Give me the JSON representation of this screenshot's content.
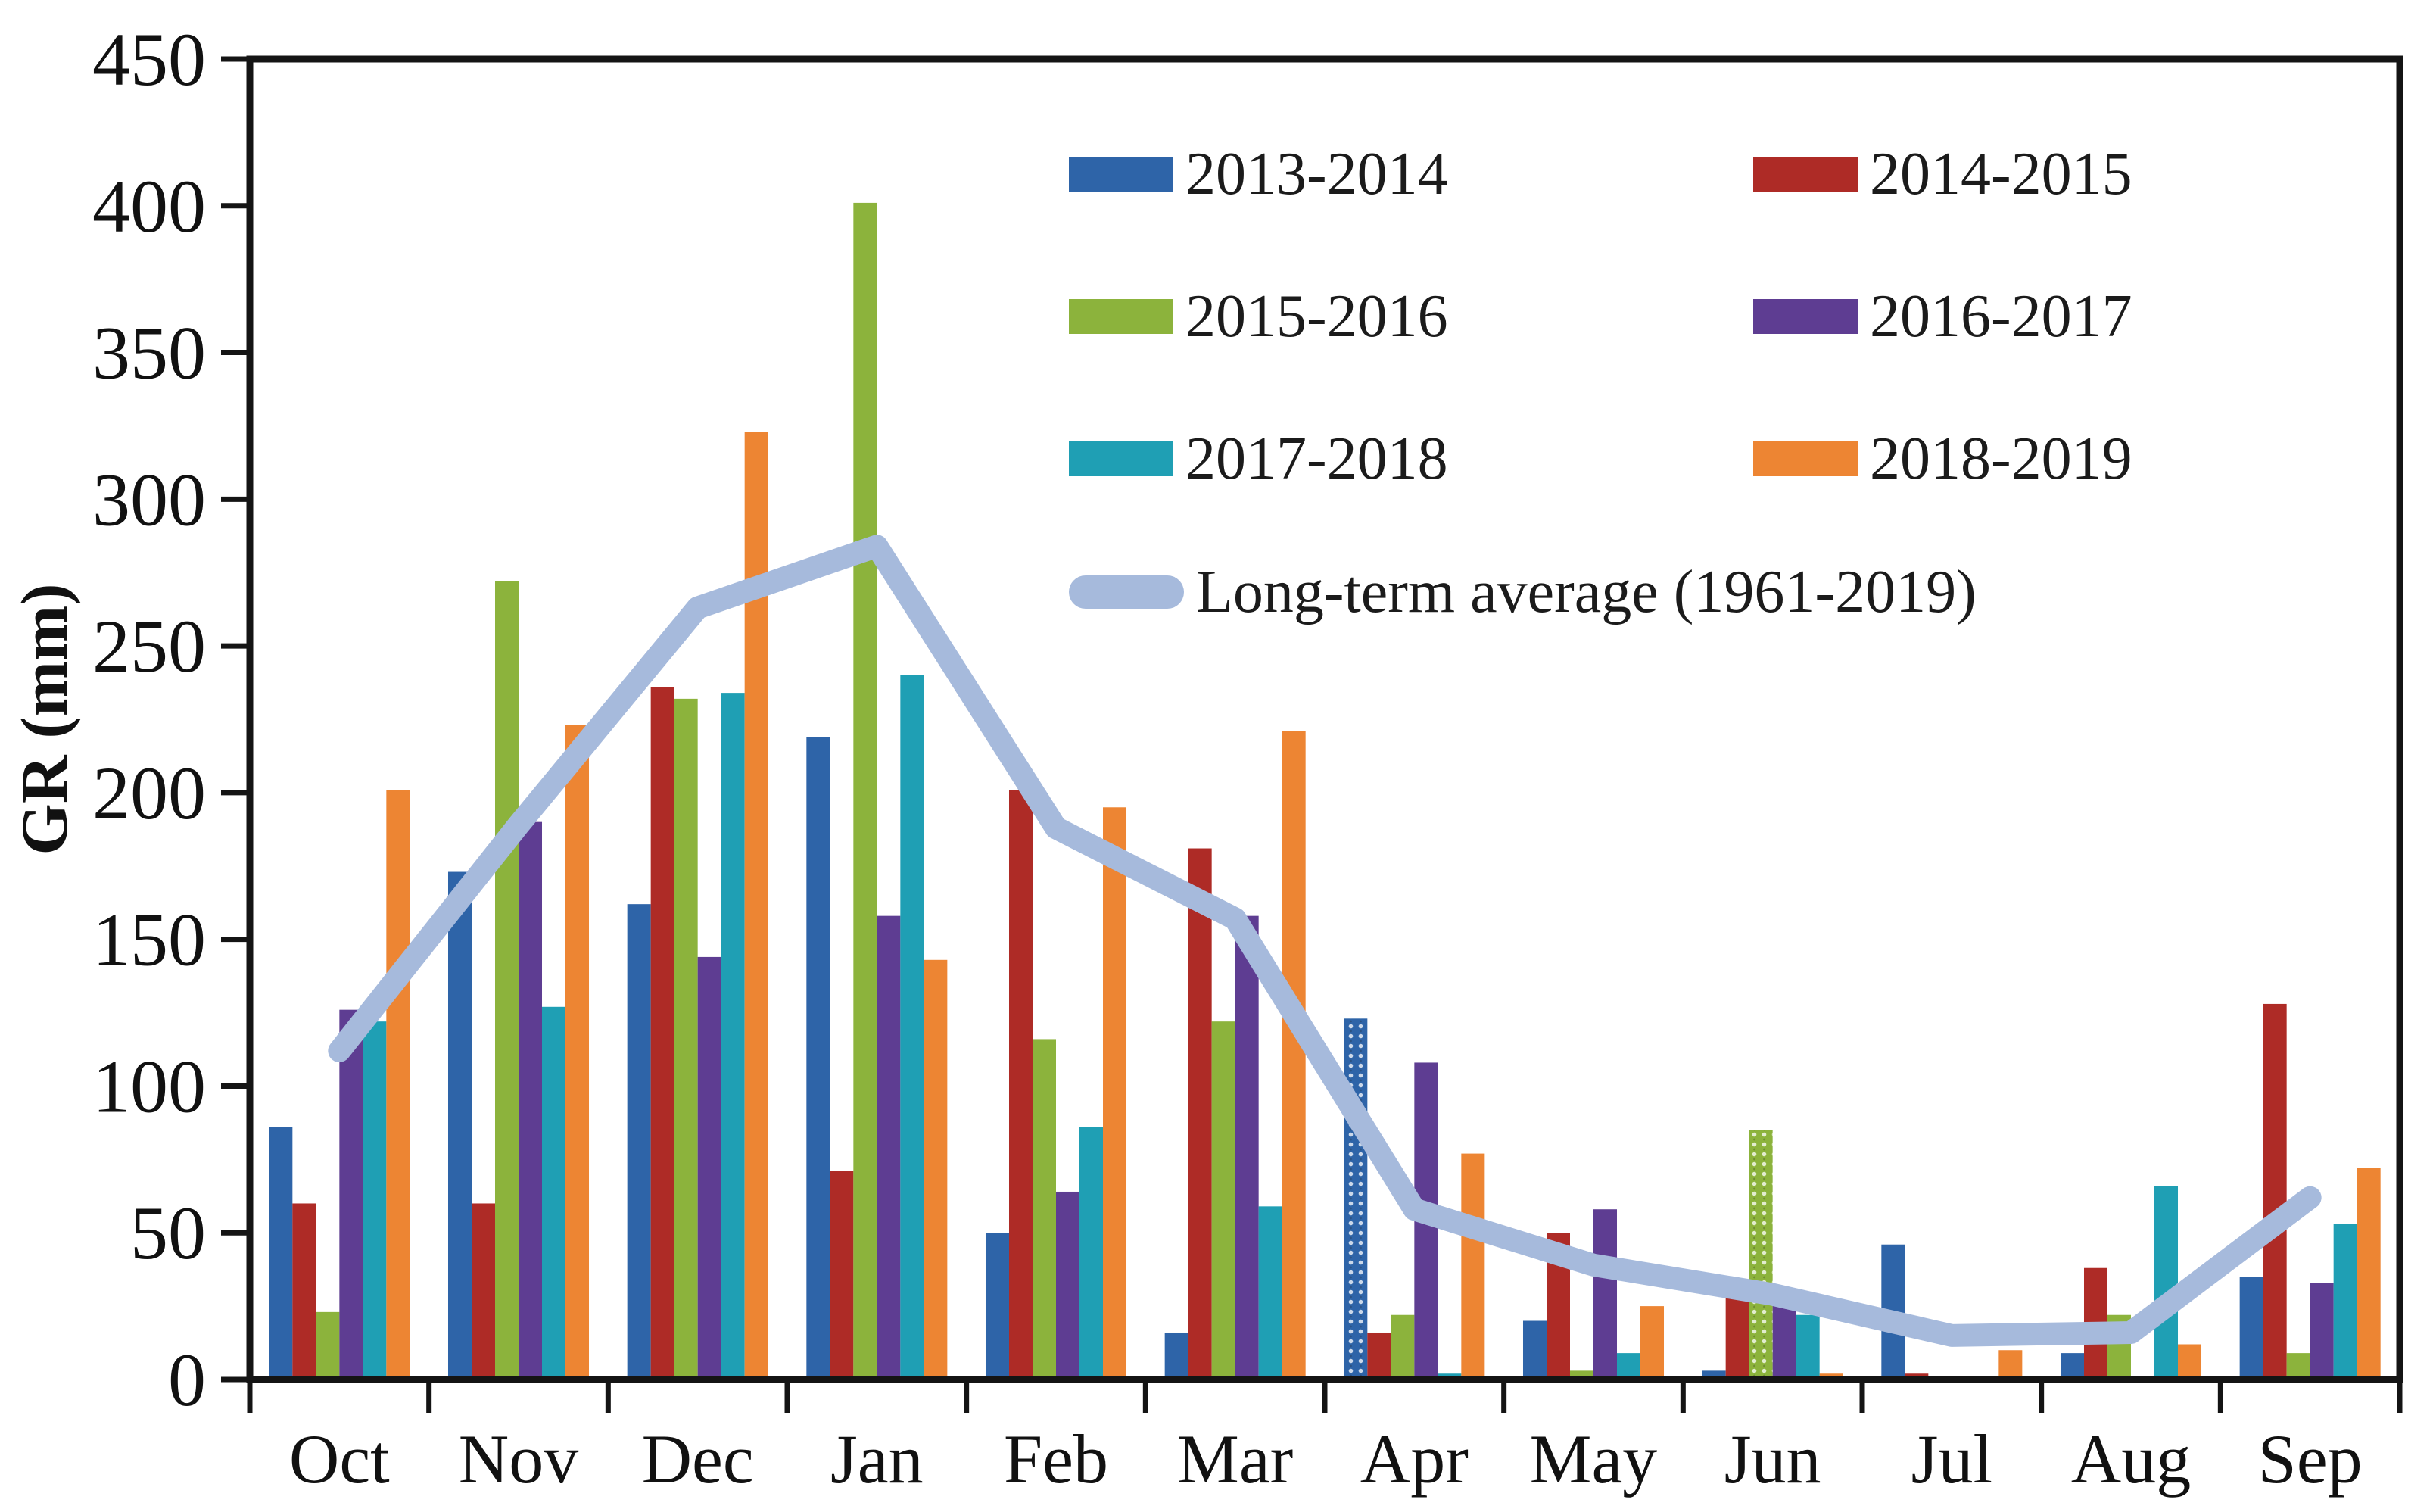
{
  "chart_data": {
    "type": "bar",
    "title": "",
    "xlabel": "",
    "ylabel": "GR (mm)",
    "ylim": [
      0,
      450
    ],
    "ytick_step": 50,
    "grid": false,
    "legend_position": "top-center-two-columns",
    "categories": [
      "Oct",
      "Nov",
      "Dec",
      "Jan",
      "Feb",
      "Mar",
      "Apr",
      "May",
      "Jun",
      "Jul",
      "Aug",
      "Sep"
    ],
    "series": [
      {
        "name": "2013-2014",
        "color": "#2E64A8",
        "values": [
          86,
          173,
          162,
          219,
          50,
          16,
          123,
          20,
          3,
          46,
          9,
          35
        ]
      },
      {
        "name": "2014-2015",
        "color": "#AE2B26",
        "values": [
          60,
          60,
          236,
          71,
          201,
          181,
          16,
          50,
          30,
          2,
          38,
          128
        ]
      },
      {
        "name": "2015-2016",
        "color": "#8CB33C",
        "values": [
          23,
          272,
          232,
          401,
          116,
          122,
          22,
          3,
          85,
          0,
          22,
          9
        ]
      },
      {
        "name": "2016-2017",
        "color": "#5E3D92",
        "values": [
          126,
          190,
          144,
          158,
          64,
          158,
          108,
          58,
          30,
          0,
          0,
          33
        ]
      },
      {
        "name": "2017-2018",
        "color": "#1F9FB4",
        "values": [
          122,
          127,
          234,
          240,
          86,
          59,
          2,
          9,
          22,
          0,
          66,
          53
        ]
      },
      {
        "name": "2018-2019",
        "color": "#ED8533",
        "values": [
          201,
          223,
          323,
          143,
          195,
          221,
          77,
          25,
          2,
          10,
          12,
          72
        ]
      }
    ],
    "line_series": {
      "name": "Long-term average (1961-2019)",
      "color": "#A6BADC",
      "values": [
        112,
        189,
        263,
        284,
        188,
        157,
        58,
        39,
        29,
        15,
        16,
        62
      ]
    },
    "patterned_bars": [
      {
        "series": "2013-2014",
        "category": "Apr"
      },
      {
        "series": "2015-2016",
        "category": "Jun"
      }
    ],
    "axis_color": "#141414"
  }
}
